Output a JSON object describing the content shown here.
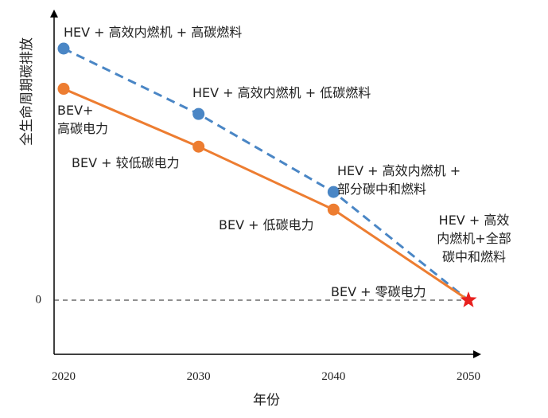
{
  "chart_data": {
    "type": "line",
    "title": "",
    "xlabel": "年份",
    "ylabel": "全生命周期碳排放",
    "x": [
      2020,
      2030,
      2040,
      2050
    ],
    "xlim": [
      2020,
      2050
    ],
    "ylim": [
      0,
      1.15
    ],
    "y_tick_labels": [
      {
        "value": 0,
        "label": "0"
      }
    ],
    "zero_reference_line": true,
    "grid": false,
    "legend": "none",
    "series": [
      {
        "name": "HEV",
        "color": "#4a86c5",
        "line_style": "dashed",
        "values": [
          1.0,
          0.74,
          0.43,
          0.0
        ],
        "point_labels": [
          [
            "HEV + 高效内燃机 + 高碳燃料"
          ],
          [
            "HEV + 高效内燃机 + 低碳燃料"
          ],
          [
            "HEV + 高效内燃机 +",
            "部分碳中和燃料"
          ],
          [
            "HEV + 高效",
            "内燃机+全部",
            "碳中和燃料"
          ]
        ]
      },
      {
        "name": "BEV",
        "color": "#ed7d31",
        "line_style": "solid",
        "values": [
          0.84,
          0.61,
          0.36,
          0.0
        ],
        "point_labels": [
          [
            "BEV+",
            "高碳电力"
          ],
          [
            "BEV + 较低碳电力"
          ],
          [
            "BEV + 低碳电力"
          ],
          [
            "BEV + 零碳电力"
          ]
        ]
      }
    ],
    "end_marker": {
      "shape": "star",
      "color": "#e8201e"
    }
  }
}
